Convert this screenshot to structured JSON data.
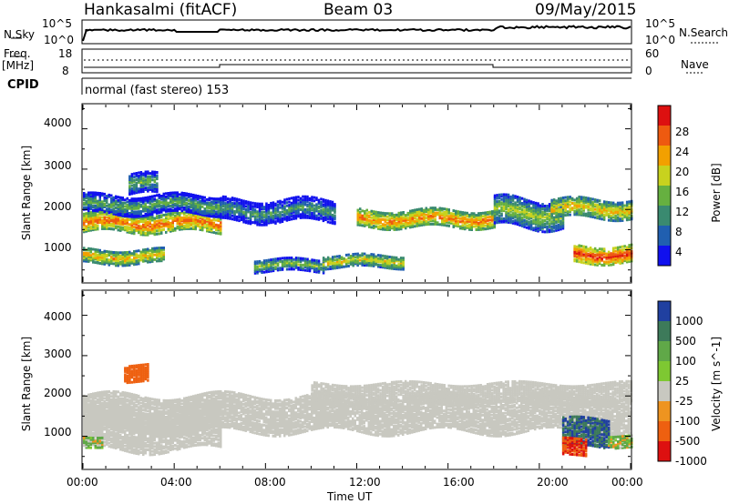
{
  "header": {
    "radar": "Hankasalmi (fitACF)",
    "beam": "Beam 03",
    "date": "09/May/2015"
  },
  "summary_panel": {
    "nsky_label": "N.Sky",
    "nsearch_label": "N.Search",
    "nsky_ticks": [
      "10^5",
      "10^0"
    ],
    "nsearch_ticks": [
      "10^5",
      "10^0"
    ],
    "freq_label_line1": "Freq.",
    "freq_label_line2": "[MHz]",
    "freq_ticks": [
      "18",
      "8"
    ],
    "nave_label": "Nave",
    "nave_ticks": [
      "60",
      "0"
    ],
    "cpid_label": "CPID",
    "cpid_value": "normal (fast stereo) 153"
  },
  "x_axis": {
    "label": "Time UT",
    "ticks": [
      "00:00",
      "04:00",
      "08:00",
      "12:00",
      "16:00",
      "20:00",
      "00:00"
    ]
  },
  "colors": {
    "power_scale": [
      "#1010ee",
      "#205fb0",
      "#3a8a70",
      "#66b040",
      "#c8d21e",
      "#f2a000",
      "#ee5a10",
      "#dd1010"
    ],
    "velocity_scale": [
      "#2040a0",
      "#3d7a5a",
      "#60a848",
      "#7ec832",
      "#c8c8c0",
      "#ee9420",
      "#ee6010",
      "#dd1010"
    ],
    "ground_scatter": "#c8c8c0"
  },
  "chart_data": [
    {
      "type": "heatmap",
      "title": "Power",
      "xlabel": "Time UT",
      "ylabel": "Slant Range [km]",
      "xlim": [
        "00:00",
        "24:00"
      ],
      "ylim": [
        200,
        4600
      ],
      "yticks": [
        "1000",
        "2000",
        "3000",
        "4000"
      ],
      "colorbar": {
        "label": "Power [dB]",
        "range": [
          0,
          32
        ],
        "ticks": [
          "4",
          "8",
          "12",
          "16",
          "20",
          "24",
          "28"
        ]
      },
      "bands": [
        {
          "start_h": 0.0,
          "end_h": 6.0,
          "center_km": 1700,
          "half_width_km": 220,
          "level_db": 26
        },
        {
          "start_h": 0.0,
          "end_h": 6.0,
          "center_km": 2150,
          "half_width_km": 220,
          "level_db": 14
        },
        {
          "start_h": 0.0,
          "end_h": 3.5,
          "center_km": 870,
          "half_width_km": 170,
          "level_db": 22
        },
        {
          "start_h": 2.0,
          "end_h": 3.2,
          "center_km": 2650,
          "half_width_km": 250,
          "level_db": 14
        },
        {
          "start_h": 6.0,
          "end_h": 11.0,
          "center_km": 2000,
          "half_width_km": 260,
          "level_db": 12
        },
        {
          "start_h": 7.5,
          "end_h": 10.5,
          "center_km": 650,
          "half_width_km": 150,
          "level_db": 16
        },
        {
          "start_h": 10.5,
          "end_h": 14.0,
          "center_km": 750,
          "half_width_km": 150,
          "level_db": 20
        },
        {
          "start_h": 12.0,
          "end_h": 18.0,
          "center_km": 1800,
          "half_width_km": 200,
          "level_db": 25
        },
        {
          "start_h": 18.0,
          "end_h": 21.0,
          "center_km": 1950,
          "half_width_km": 350,
          "level_db": 17
        },
        {
          "start_h": 20.5,
          "end_h": 24.0,
          "center_km": 2050,
          "half_width_km": 220,
          "level_db": 22
        },
        {
          "start_h": 21.5,
          "end_h": 24.0,
          "center_km": 920,
          "half_width_km": 200,
          "level_db": 29
        }
      ]
    },
    {
      "type": "heatmap",
      "title": "Velocity",
      "xlabel": "Time UT",
      "ylabel": "Slant Range [km]",
      "xlim": [
        "00:00",
        "24:00"
      ],
      "ylim": [
        200,
        4600
      ],
      "yticks": [
        "1000",
        "2000",
        "3000",
        "4000"
      ],
      "colorbar": {
        "label": "Velocity [m s^-1]",
        "ticks": [
          "1000",
          "500",
          "100",
          "25",
          "-25",
          "-100",
          "-500",
          "-1000"
        ]
      },
      "bands": [
        {
          "start_h": 0.0,
          "end_h": 24.0,
          "center_km": 1600,
          "half_width_km": 450,
          "kind": "ground"
        },
        {
          "start_h": 0.0,
          "end_h": 6.0,
          "center_km": 1200,
          "half_width_km": 500,
          "kind": "ground"
        },
        {
          "start_h": 10.0,
          "end_h": 24.0,
          "center_km": 2100,
          "half_width_km": 250,
          "kind": "ground"
        },
        {
          "start_h": 1.8,
          "end_h": 2.8,
          "center_km": 2600,
          "half_width_km": 200,
          "velocity": -300
        },
        {
          "start_h": 0.0,
          "end_h": 0.8,
          "center_km": 900,
          "half_width_km": 120,
          "velocity": 80
        },
        {
          "start_h": 21.0,
          "end_h": 23.0,
          "center_km": 1100,
          "half_width_km": 350,
          "velocity": 700
        },
        {
          "start_h": 21.0,
          "end_h": 22.0,
          "center_km": 750,
          "half_width_km": 200,
          "velocity": -500
        },
        {
          "start_h": 23.0,
          "end_h": 24.0,
          "center_km": 900,
          "half_width_km": 150,
          "velocity": 60
        }
      ]
    }
  ]
}
